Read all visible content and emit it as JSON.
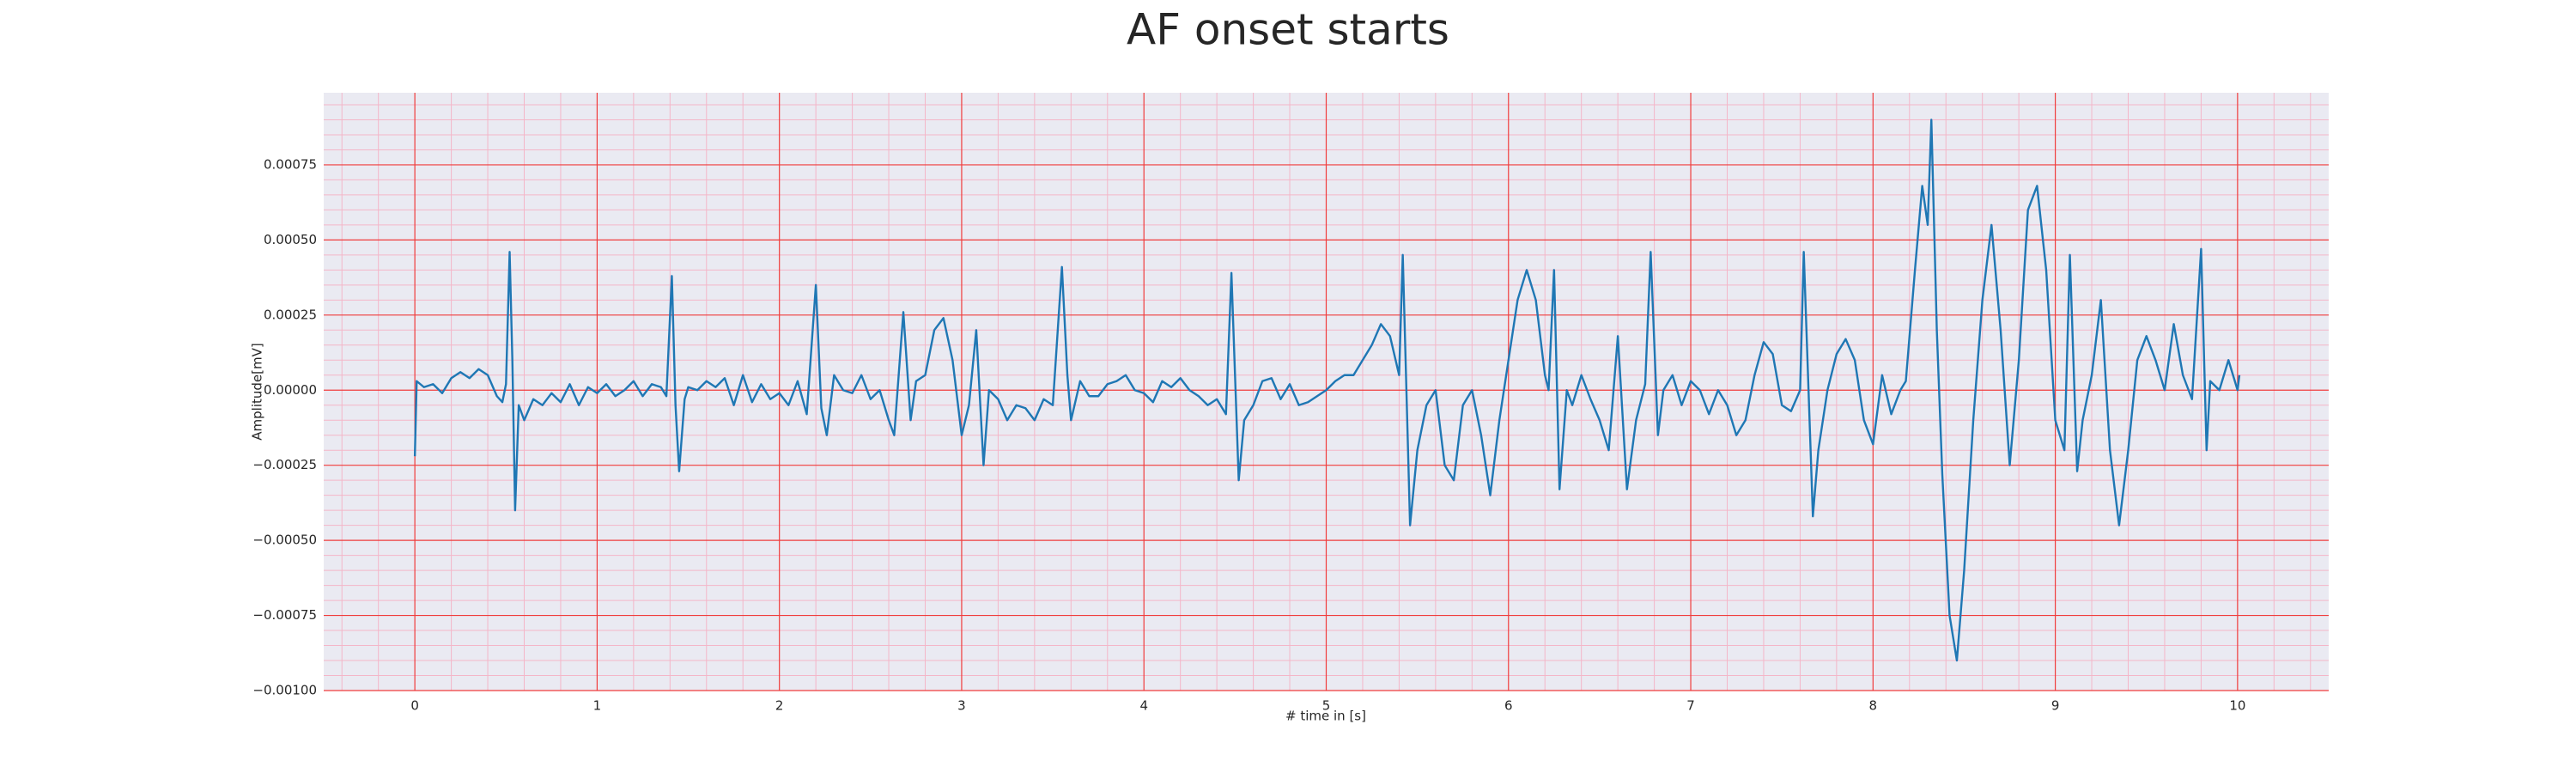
{
  "chart_data": {
    "type": "line",
    "title": "AF onset starts",
    "xlabel": "# time in [s]",
    "ylabel": "Amplitude[mV]",
    "color": "#1f77b4",
    "grid": true,
    "minor_grid": true,
    "xlim": [
      -0.5,
      10.5
    ],
    "ylim": [
      -0.001,
      0.00099
    ],
    "xticks": [
      0,
      1,
      2,
      3,
      4,
      5,
      6,
      7,
      8,
      9,
      10
    ],
    "yticks": [
      {
        "value": -0.001,
        "label": "−0.00100"
      },
      {
        "value": -0.00075,
        "label": "−0.00075"
      },
      {
        "value": -0.0005,
        "label": "−0.00050"
      },
      {
        "value": -0.00025,
        "label": "−0.00025"
      },
      {
        "value": 0,
        "label": "0.00000"
      },
      {
        "value": 0.00025,
        "label": "0.00025"
      },
      {
        "value": 0.0005,
        "label": "0.00050"
      },
      {
        "value": 0.00075,
        "label": "0.00075"
      }
    ],
    "x": [
      0,
      0.01,
      0.05,
      0.1,
      0.15,
      0.2,
      0.25,
      0.3,
      0.35,
      0.4,
      0.45,
      0.48,
      0.5,
      0.52,
      0.535,
      0.55,
      0.57,
      0.6,
      0.65,
      0.7,
      0.75,
      0.8,
      0.85,
      0.9,
      0.95,
      1.0,
      1.05,
      1.1,
      1.15,
      1.2,
      1.25,
      1.3,
      1.35,
      1.38,
      1.41,
      1.43,
      1.45,
      1.48,
      1.5,
      1.55,
      1.6,
      1.65,
      1.7,
      1.75,
      1.8,
      1.85,
      1.9,
      1.95,
      2.0,
      2.05,
      2.1,
      2.15,
      2.2,
      2.23,
      2.26,
      2.3,
      2.35,
      2.4,
      2.45,
      2.5,
      2.55,
      2.6,
      2.63,
      2.68,
      2.72,
      2.75,
      2.8,
      2.85,
      2.9,
      2.95,
      3.0,
      3.04,
      3.08,
      3.12,
      3.15,
      3.2,
      3.25,
      3.3,
      3.35,
      3.4,
      3.45,
      3.5,
      3.55,
      3.58,
      3.6,
      3.65,
      3.7,
      3.75,
      3.8,
      3.85,
      3.9,
      3.95,
      4.0,
      4.05,
      4.1,
      4.15,
      4.2,
      4.25,
      4.3,
      4.35,
      4.4,
      4.45,
      4.48,
      4.52,
      4.55,
      4.6,
      4.65,
      4.7,
      4.75,
      4.8,
      4.85,
      4.9,
      4.95,
      5.0,
      5.05,
      5.1,
      5.15,
      5.2,
      5.25,
      5.3,
      5.35,
      5.4,
      5.42,
      5.46,
      5.5,
      5.55,
      5.6,
      5.65,
      5.7,
      5.75,
      5.8,
      5.85,
      5.9,
      5.95,
      6.0,
      6.05,
      6.1,
      6.15,
      6.2,
      6.22,
      6.25,
      6.28,
      6.32,
      6.35,
      6.4,
      6.45,
      6.5,
      6.55,
      6.6,
      6.65,
      6.7,
      6.75,
      6.78,
      6.82,
      6.85,
      6.9,
      6.95,
      7.0,
      7.05,
      7.1,
      7.15,
      7.2,
      7.25,
      7.3,
      7.35,
      7.4,
      7.45,
      7.5,
      7.55,
      7.6,
      7.62,
      7.67,
      7.7,
      7.75,
      7.8,
      7.85,
      7.9,
      7.95,
      8.0,
      8.05,
      8.1,
      8.15,
      8.18,
      8.23,
      8.27,
      8.3,
      8.32,
      8.35,
      8.38,
      8.42,
      8.46,
      8.5,
      8.55,
      8.6,
      8.65,
      8.7,
      8.75,
      8.8,
      8.85,
      8.9,
      8.95,
      9.0,
      9.05,
      9.08,
      9.12,
      9.15,
      9.2,
      9.25,
      9.3,
      9.35,
      9.4,
      9.45,
      9.5,
      9.55,
      9.6,
      9.65,
      9.7,
      9.75,
      9.8,
      9.83,
      9.85,
      9.9,
      9.95,
      10.0,
      10.01
    ],
    "values": [
      -0.00022,
      3e-05,
      1e-05,
      2e-05,
      -1e-05,
      4e-05,
      6e-05,
      4e-05,
      7e-05,
      5e-05,
      -2e-05,
      -4e-05,
      2e-05,
      0.00046,
      0.0001,
      -0.0004,
      -5e-05,
      -0.0001,
      -3e-05,
      -5e-05,
      -1e-05,
      -4e-05,
      2e-05,
      -5e-05,
      1e-05,
      -1e-05,
      2e-05,
      -2e-05,
      0,
      3e-05,
      -2e-05,
      2e-05,
      1e-05,
      -2e-05,
      0.00038,
      -5e-05,
      -0.00027,
      -3e-05,
      1e-05,
      0,
      3e-05,
      1e-05,
      4e-05,
      -5e-05,
      5e-05,
      -4e-05,
      2e-05,
      -3e-05,
      -1e-05,
      -5e-05,
      3e-05,
      -8e-05,
      0.00035,
      -6e-05,
      -0.00015,
      5e-05,
      0,
      -1e-05,
      5e-05,
      -3e-05,
      0,
      -0.0001,
      -0.00015,
      0.00026,
      -0.0001,
      3e-05,
      5e-05,
      0.0002,
      0.00024,
      0.0001,
      -0.00015,
      -5e-05,
      0.0002,
      -0.00025,
      0,
      -3e-05,
      -0.0001,
      -5e-05,
      -6e-05,
      -0.0001,
      -3e-05,
      -5e-05,
      0.00041,
      5e-05,
      -0.0001,
      3e-05,
      -2e-05,
      -2e-05,
      2e-05,
      3e-05,
      5e-05,
      0,
      -1e-05,
      -4e-05,
      3e-05,
      1e-05,
      4e-05,
      0,
      -2e-05,
      -5e-05,
      -3e-05,
      -8e-05,
      0.00039,
      -0.0003,
      -0.0001,
      -5e-05,
      3e-05,
      4e-05,
      -3e-05,
      2e-05,
      -5e-05,
      -4e-05,
      -2e-05,
      0,
      3e-05,
      5e-05,
      5e-05,
      0.0001,
      0.00015,
      0.00022,
      0.00018,
      5e-05,
      0.00045,
      -0.00045,
      -0.0002,
      -5e-05,
      0,
      -0.00025,
      -0.0003,
      -5e-05,
      0,
      -0.00015,
      -0.00035,
      -0.0001,
      0.0001,
      0.0003,
      0.0004,
      0.0003,
      5e-05,
      0,
      0.0004,
      -0.00033,
      0,
      -5e-05,
      5e-05,
      -3e-05,
      -0.0001,
      -0.0002,
      0.00018,
      -0.00033,
      -0.0001,
      2e-05,
      0.00046,
      -0.00015,
      0,
      5e-05,
      -5e-05,
      3e-05,
      0,
      -8e-05,
      0,
      -5e-05,
      -0.00015,
      -0.0001,
      5e-05,
      0.00016,
      0.00012,
      -5e-05,
      -7e-05,
      0,
      0.00046,
      -0.00042,
      -0.0002,
      0,
      0.00012,
      0.00017,
      0.0001,
      -0.0001,
      -0.00018,
      5e-05,
      -8e-05,
      0,
      3e-05,
      0.0004,
      0.00068,
      0.00055,
      0.0009,
      0.0002,
      -0.00028,
      -0.00075,
      -0.0009,
      -0.0006,
      -0.0001,
      0.0003,
      0.00055,
      0.0002,
      -0.00025,
      0.0001,
      0.0006,
      0.00068,
      0.0004,
      -0.0001,
      -0.0002,
      0.00045,
      -0.00027,
      -0.0001,
      5e-05,
      0.0003,
      -0.0002,
      -0.00045,
      -0.0002,
      0.0001,
      0.00018,
      0.0001,
      0,
      0.00022,
      5e-05,
      -3e-05,
      0.00047,
      -0.0002,
      3e-05,
      0,
      0.0001,
      0,
      5e-05
    ]
  }
}
